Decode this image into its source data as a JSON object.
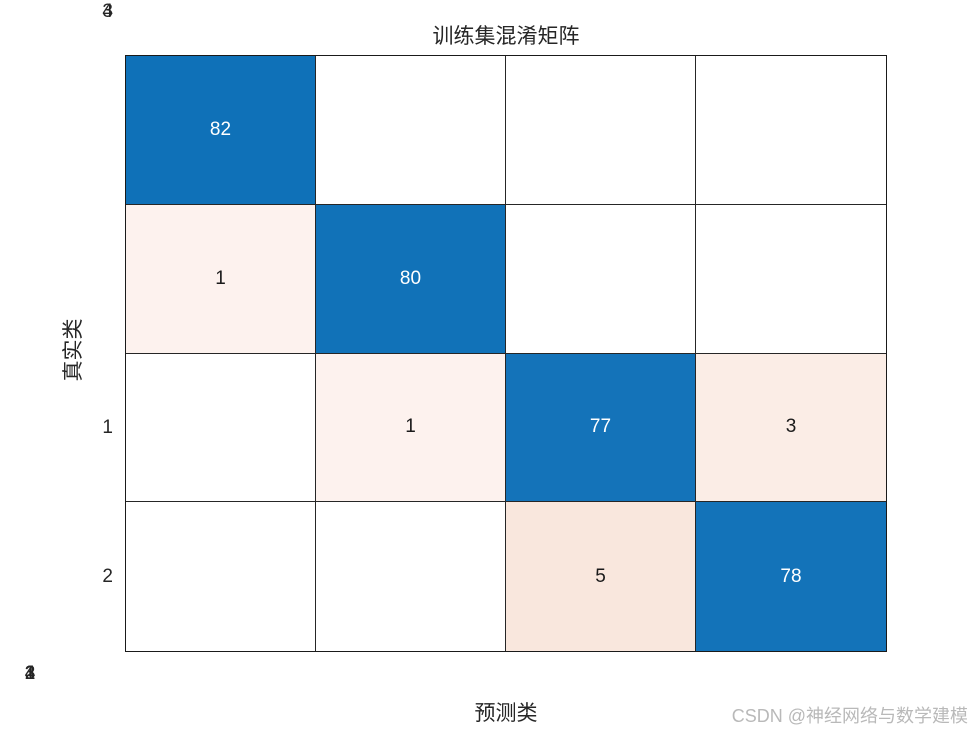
{
  "title": "训练集混淆矩阵",
  "x_axis": {
    "label": "预测类",
    "ticks": [
      "1",
      "2",
      "3",
      "4"
    ]
  },
  "y_axis": {
    "label": "真实类",
    "ticks": [
      "1",
      "2",
      "3",
      "4"
    ]
  },
  "watermark": "CSDN @神经网络与数学建模",
  "colors": {
    "diagonal_blue": "#1172b8",
    "off_diagonal_light": "#fdf2ee",
    "empty_cell": "#ffffff",
    "grid_line": "#262626",
    "text_on_blue": "#ffffff",
    "text_dark": "#1a1a1a",
    "watermark_gray": "#b9b9b9"
  },
  "chart_data": {
    "type": "heatmap",
    "title": "训练集混淆矩阵",
    "xlabel": "预测类",
    "ylabel": "真实类",
    "x_categories": [
      "1",
      "2",
      "3",
      "4"
    ],
    "y_categories": [
      "1",
      "2",
      "3",
      "4"
    ],
    "matrix": [
      [
        82,
        0,
        0,
        0
      ],
      [
        1,
        80,
        0,
        0
      ],
      [
        0,
        1,
        77,
        3
      ],
      [
        0,
        0,
        5,
        78
      ]
    ],
    "cell_labels": [
      [
        "82",
        "",
        "",
        ""
      ],
      [
        "1",
        "80",
        "",
        ""
      ],
      [
        "",
        "1",
        "77",
        "3"
      ],
      [
        "",
        "",
        "5",
        "78"
      ]
    ],
    "cell_colors": [
      [
        "#0f71b8",
        "#ffffff",
        "#ffffff",
        "#ffffff"
      ],
      [
        "#fdf2ee",
        "#1172b8",
        "#ffffff",
        "#ffffff"
      ],
      [
        "#ffffff",
        "#fdf2ee",
        "#1473b9",
        "#fbede6"
      ],
      [
        "#ffffff",
        "#ffffff",
        "#f9e7dd",
        "#1373b9"
      ]
    ],
    "cell_text_colors": [
      [
        "#ffffff",
        "#1a1a1a",
        "#1a1a1a",
        "#1a1a1a"
      ],
      [
        "#1a1a1a",
        "#ffffff",
        "#1a1a1a",
        "#1a1a1a"
      ],
      [
        "#1a1a1a",
        "#1a1a1a",
        "#ffffff",
        "#1a1a1a"
      ],
      [
        "#1a1a1a",
        "#1a1a1a",
        "#1a1a1a",
        "#ffffff"
      ]
    ],
    "grid": true,
    "legend": false
  }
}
